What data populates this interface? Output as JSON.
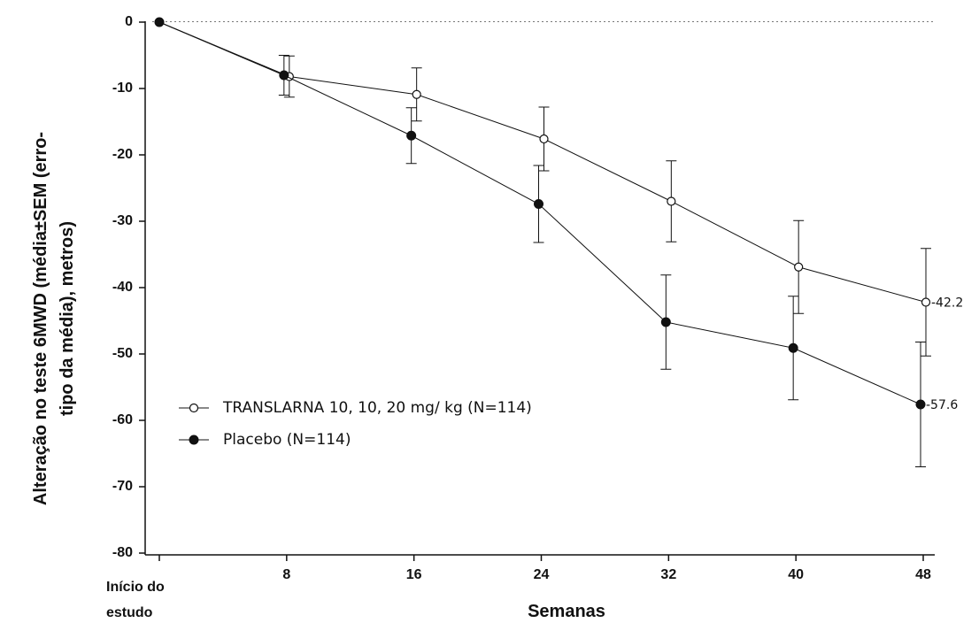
{
  "chart_data": {
    "type": "line",
    "xlabel": "Semanas",
    "ylabel_line1": "Alteração no teste 6MWD (média±SEM (erro-",
    "ylabel_line2": "tipo da média), metros)",
    "baseline_label_line1": "Início do",
    "baseline_label_line2": "estudo",
    "x_ticks": [
      "8",
      "16",
      "24",
      "32",
      "40",
      "48"
    ],
    "y_ticks": [
      "0",
      "-10",
      "-20",
      "-30",
      "-40",
      "-50",
      "-60",
      "-70",
      "-80"
    ],
    "ylim": [
      -80,
      0
    ],
    "xlim": [
      0,
      48
    ],
    "reference_line_y": 0,
    "x": [
      0,
      8,
      16,
      24,
      32,
      40,
      48
    ],
    "series": [
      {
        "name": "TRANSLARNA 10, 10, 20 mg/ kg (N=114)",
        "marker": "open-circle",
        "values": [
          0,
          -8.2,
          -10.9,
          -17.6,
          -27.0,
          -36.9,
          -42.2
        ],
        "sem": [
          0,
          3.1,
          4.0,
          4.8,
          6.1,
          7.0,
          8.1
        ],
        "end_label": "-42.2"
      },
      {
        "name": "Placebo (N=114)",
        "marker": "filled-circle",
        "values": [
          0,
          -8.0,
          -17.1,
          -27.4,
          -45.2,
          -49.1,
          -57.6
        ],
        "sem": [
          0,
          3.0,
          4.2,
          5.8,
          7.1,
          7.8,
          9.4
        ],
        "end_label": "-57.6"
      }
    ],
    "legend_position": "lower-left"
  }
}
